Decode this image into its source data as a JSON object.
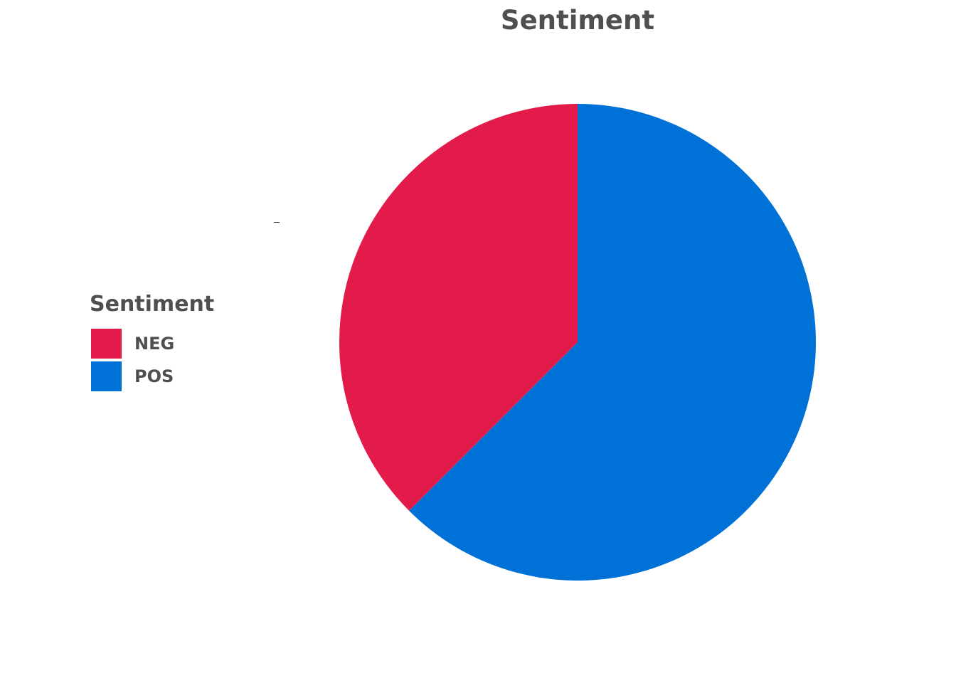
{
  "chart_data": {
    "type": "pie",
    "title": "Sentiment",
    "legend_title": "Sentiment",
    "legend_position": "left",
    "start_angle_deg": 0,
    "direction": "clockwise",
    "slices": [
      {
        "label": "POS",
        "value": 62.5,
        "color": "#0072d7"
      },
      {
        "label": "NEG",
        "value": 37.5,
        "color": "#e21b4a"
      }
    ],
    "legend_order": [
      "NEG",
      "POS"
    ]
  }
}
